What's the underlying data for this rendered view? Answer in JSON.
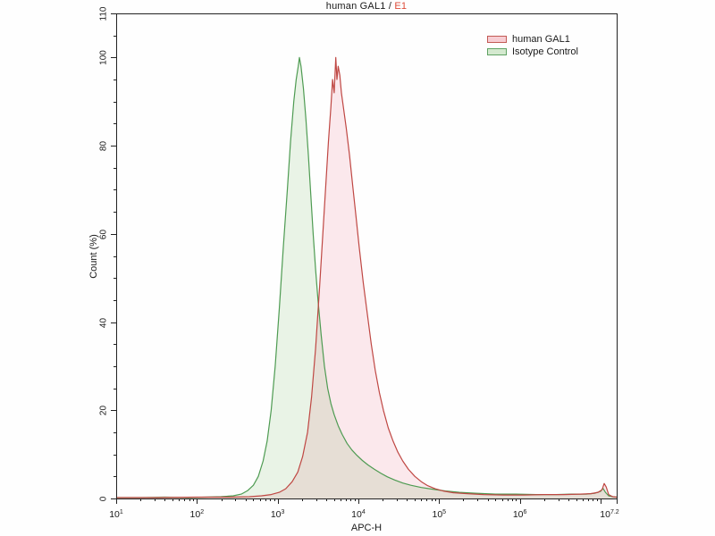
{
  "title": {
    "main": "human GAL1 /",
    "accent": "E1",
    "accent_color": "#dd4b38"
  },
  "legend": {
    "items": [
      {
        "label": "human GAL1",
        "swatch_fill": "#f7cdd3",
        "swatch_border": "#c25a55"
      },
      {
        "label": "Isotype Control",
        "swatch_fill": "#d4e9cf",
        "swatch_border": "#5fa263"
      }
    ]
  },
  "chart_data": {
    "type": "area",
    "subtype": "flow-cytometry-histogram-overlay",
    "title": "human GAL1 / E1",
    "xlabel": "APC-H",
    "ylabel": "Count  (%)",
    "x_scale": "log10",
    "x_range_log": [
      1,
      7.2
    ],
    "ylim": [
      0,
      110
    ],
    "grid": false,
    "legend_position": "top-right-inside",
    "axis_color": "#222222",
    "x_major_tick_exponents": [
      1,
      2,
      3,
      4,
      5,
      6,
      7,
      7.2
    ],
    "x_tick_labels": [
      {
        "base": "10",
        "exp": "1",
        "log": 1
      },
      {
        "base": "10",
        "exp": "2",
        "log": 2
      },
      {
        "base": "10",
        "exp": "3",
        "log": 3
      },
      {
        "base": "10",
        "exp": "4",
        "log": 4
      },
      {
        "base": "10",
        "exp": "5",
        "log": 5
      },
      {
        "base": "10",
        "exp": "6",
        "log": 6
      },
      {
        "base": "10",
        "exp": "7.2",
        "log": 7.2
      }
    ],
    "y_major_ticks": [
      0,
      20,
      40,
      60,
      80,
      100,
      110
    ],
    "y_minor_step": 5,
    "series": [
      {
        "name": "Isotype Control",
        "stroke": "#4e9b52",
        "fill": "#e9f3e6",
        "blend": "normal",
        "points_log_x_vs_count_pct": [
          [
            1.0,
            0.2
          ],
          [
            1.3,
            0.2
          ],
          [
            1.6,
            0.3
          ],
          [
            1.9,
            0.2
          ],
          [
            2.1,
            0.3
          ],
          [
            2.3,
            0.4
          ],
          [
            2.45,
            0.6
          ],
          [
            2.55,
            1.0
          ],
          [
            2.63,
            1.8
          ],
          [
            2.7,
            3.0
          ],
          [
            2.76,
            5.0
          ],
          [
            2.82,
            8.5
          ],
          [
            2.87,
            13
          ],
          [
            2.92,
            20
          ],
          [
            2.97,
            30
          ],
          [
            3.02,
            43
          ],
          [
            3.07,
            57
          ],
          [
            3.12,
            70
          ],
          [
            3.16,
            81
          ],
          [
            3.2,
            90
          ],
          [
            3.23,
            95
          ],
          [
            3.255,
            98
          ],
          [
            3.27,
            100
          ],
          [
            3.29,
            98
          ],
          [
            3.32,
            93
          ],
          [
            3.35,
            86
          ],
          [
            3.38,
            78
          ],
          [
            3.41,
            69
          ],
          [
            3.44,
            60
          ],
          [
            3.47,
            52
          ],
          [
            3.5,
            45
          ],
          [
            3.54,
            37
          ],
          [
            3.58,
            30
          ],
          [
            3.62,
            25
          ],
          [
            3.66,
            21.5
          ],
          [
            3.7,
            19
          ],
          [
            3.75,
            16.5
          ],
          [
            3.8,
            14.5
          ],
          [
            3.86,
            12.5
          ],
          [
            3.92,
            11
          ],
          [
            3.98,
            9.8
          ],
          [
            4.05,
            8.6
          ],
          [
            4.12,
            7.6
          ],
          [
            4.2,
            6.6
          ],
          [
            4.28,
            5.7
          ],
          [
            4.36,
            4.9
          ],
          [
            4.45,
            4.2
          ],
          [
            4.55,
            3.5
          ],
          [
            4.65,
            3.0
          ],
          [
            4.78,
            2.5
          ],
          [
            4.92,
            2.1
          ],
          [
            5.08,
            1.7
          ],
          [
            5.25,
            1.4
          ],
          [
            5.45,
            1.2
          ],
          [
            5.7,
            1.0
          ],
          [
            5.95,
            1.0
          ],
          [
            6.2,
            0.9
          ],
          [
            6.45,
            0.9
          ],
          [
            6.65,
            1.0
          ],
          [
            6.82,
            1.0
          ],
          [
            6.93,
            1.2
          ],
          [
            7.0,
            1.6
          ],
          [
            7.03,
            2.3
          ],
          [
            7.06,
            1.4
          ],
          [
            7.1,
            0.6
          ],
          [
            7.15,
            0.4
          ],
          [
            7.2,
            0.3
          ]
        ]
      },
      {
        "name": "human GAL1",
        "stroke": "#bf4743",
        "fill": "#fce9ed",
        "blend": "multiply",
        "points_log_x_vs_count_pct": [
          [
            1.0,
            0.2
          ],
          [
            1.5,
            0.2
          ],
          [
            2.0,
            0.3
          ],
          [
            2.4,
            0.3
          ],
          [
            2.65,
            0.4
          ],
          [
            2.8,
            0.6
          ],
          [
            2.92,
            0.9
          ],
          [
            3.02,
            1.4
          ],
          [
            3.1,
            2.2
          ],
          [
            3.18,
            3.8
          ],
          [
            3.25,
            6.0
          ],
          [
            3.31,
            9.5
          ],
          [
            3.37,
            15
          ],
          [
            3.42,
            23
          ],
          [
            3.47,
            34
          ],
          [
            3.52,
            48
          ],
          [
            3.56,
            60
          ],
          [
            3.6,
            72
          ],
          [
            3.63,
            81
          ],
          [
            3.66,
            89
          ],
          [
            3.68,
            95
          ],
          [
            3.7,
            92
          ],
          [
            3.72,
            100
          ],
          [
            3.735,
            95
          ],
          [
            3.75,
            98
          ],
          [
            3.77,
            96
          ],
          [
            3.79,
            92
          ],
          [
            3.82,
            88
          ],
          [
            3.85,
            84
          ],
          [
            3.89,
            78
          ],
          [
            3.93,
            71
          ],
          [
            3.97,
            64
          ],
          [
            4.01,
            57
          ],
          [
            4.06,
            49
          ],
          [
            4.11,
            42
          ],
          [
            4.16,
            35
          ],
          [
            4.21,
            29
          ],
          [
            4.26,
            24
          ],
          [
            4.31,
            20
          ],
          [
            4.37,
            16
          ],
          [
            4.43,
            13
          ],
          [
            4.49,
            10.5
          ],
          [
            4.55,
            8.5
          ],
          [
            4.62,
            6.6
          ],
          [
            4.7,
            5.0
          ],
          [
            4.78,
            3.8
          ],
          [
            4.86,
            2.9
          ],
          [
            4.95,
            2.2
          ],
          [
            5.05,
            1.7
          ],
          [
            5.18,
            1.3
          ],
          [
            5.35,
            1.1
          ],
          [
            5.55,
            0.9
          ],
          [
            5.8,
            0.8
          ],
          [
            6.05,
            0.8
          ],
          [
            6.3,
            0.9
          ],
          [
            6.55,
            0.9
          ],
          [
            6.75,
            1.0
          ],
          [
            6.88,
            1.1
          ],
          [
            6.97,
            1.4
          ],
          [
            7.02,
            2.0
          ],
          [
            7.045,
            3.4
          ],
          [
            7.07,
            2.6
          ],
          [
            7.1,
            0.9
          ],
          [
            7.15,
            0.4
          ],
          [
            7.2,
            0.3
          ]
        ]
      }
    ]
  }
}
